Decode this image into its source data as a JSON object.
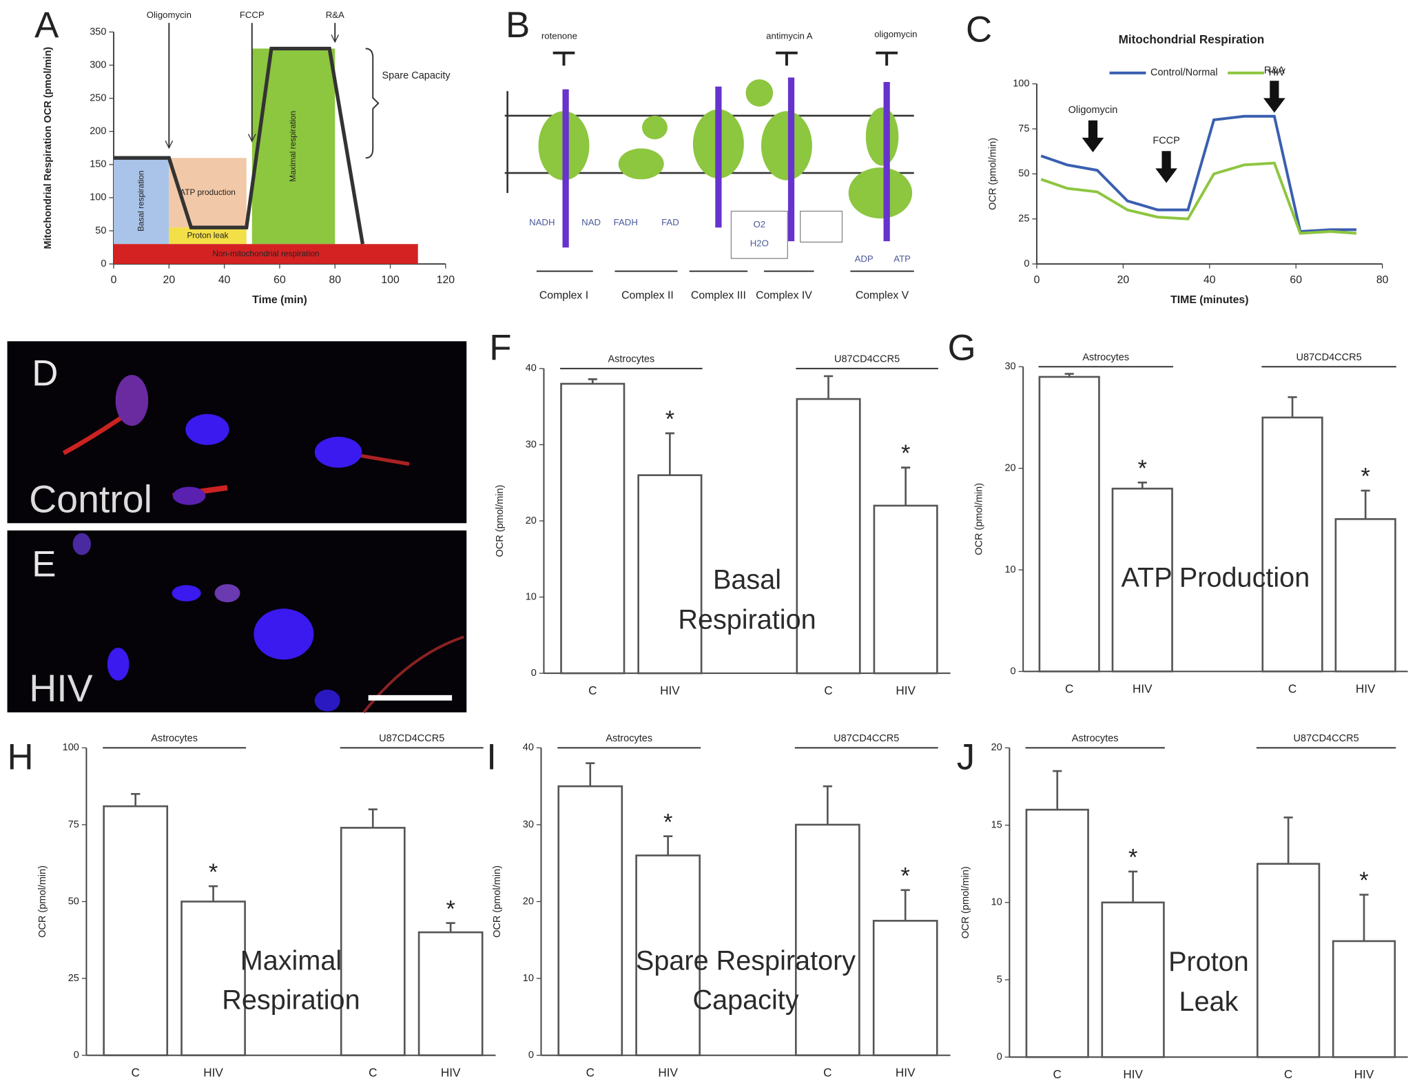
{
  "chart_data": [
    {
      "type": "line",
      "panel": "A",
      "ylabel": "Mitochondrial Respiration OCR (pmol/min)",
      "xlabel": "Time (min)",
      "x": [
        0,
        20,
        28,
        48,
        57,
        78,
        90
      ],
      "series": [
        {
          "color": "#333333",
          "values": [
            160,
            160,
            55,
            55,
            325,
            325,
            30
          ]
        }
      ],
      "xlim": [
        0,
        120
      ],
      "xticks": [
        0,
        20,
        40,
        60,
        80,
        100,
        120
      ],
      "ylim": [
        0,
        350
      ],
      "yticks": [
        0,
        50,
        100,
        150,
        200,
        250,
        300,
        350
      ],
      "regions": [
        {
          "label": "Basal respiration",
          "color": "#a9c4e8",
          "x": [
            0,
            20
          ],
          "y": [
            30,
            160
          ]
        },
        {
          "label": "ATP production",
          "color": "#f2c9a8",
          "x": [
            20,
            48
          ],
          "y": [
            55,
            160
          ]
        },
        {
          "label": "Proton leak",
          "color": "#f3df48",
          "x": [
            20,
            48
          ],
          "y": [
            30,
            55
          ]
        },
        {
          "label": "Maximal respiration",
          "color": "#8dc63f",
          "x": [
            50,
            80
          ],
          "y": [
            30,
            325
          ]
        },
        {
          "label": "Non-mitochondrial respiration",
          "color": "#d42222",
          "x": [
            0,
            110
          ],
          "y": [
            0,
            30
          ]
        }
      ],
      "annotations": [
        {
          "text": "Oligomycin",
          "x": 20,
          "y": 175
        },
        {
          "text": "FCCP",
          "x": 50,
          "y": 185
        },
        {
          "text": "R&A",
          "x": 80,
          "y": 335
        }
      ],
      "bracket": {
        "text": "Spare Capacity",
        "y": [
          160,
          325
        ]
      }
    },
    {
      "type": "line",
      "panel": "C",
      "title": "Mitochondrial Respiration",
      "ylabel": "OCR (pmol/min)",
      "xlabel": "TIME (minutes)",
      "x": [
        1,
        7,
        14,
        21,
        28,
        35,
        41,
        48,
        55,
        61,
        68,
        74
      ],
      "series": [
        {
          "name": "Control/Normal",
          "color": "#3a5fb0",
          "values": [
            60,
            55,
            52,
            35,
            30,
            30,
            80,
            82,
            82,
            18,
            19,
            19
          ]
        },
        {
          "name": "HIV",
          "color": "#8dc63f",
          "values": [
            47,
            42,
            40,
            30,
            26,
            25,
            50,
            55,
            56,
            17,
            18,
            17
          ]
        }
      ],
      "xlim": [
        0,
        80
      ],
      "xticks": [
        0,
        20,
        40,
        60,
        80
      ],
      "ylim": [
        0,
        100
      ],
      "yticks": [
        0,
        25,
        50,
        75,
        100
      ],
      "annotations": [
        {
          "text": "Oligomycin",
          "x": 13,
          "y": 62
        },
        {
          "text": "FCCP",
          "x": 30,
          "y": 45
        },
        {
          "text": "R&A",
          "x": 55,
          "y": 84
        }
      ]
    },
    {
      "type": "bar",
      "panel": "F",
      "title": "Basal Respiration",
      "ylabel": "OCR (pmol/min)",
      "categories": [
        "C",
        "HIV",
        "C",
        "HIV"
      ],
      "groups": [
        "Astrocytes",
        "U87CD4CCR5"
      ],
      "values": [
        38,
        26,
        36,
        22
      ],
      "errors": [
        0.6,
        5.5,
        3,
        5
      ],
      "markers": [
        null,
        "*",
        null,
        "*"
      ],
      "ylim": [
        0,
        40
      ],
      "yticks": [
        0,
        10,
        20,
        30,
        40
      ]
    },
    {
      "type": "bar",
      "panel": "G",
      "title": "ATP Production",
      "ylabel": "OCR (pmol/min)",
      "categories": [
        "C",
        "HIV",
        "C",
        "HIV"
      ],
      "groups": [
        "Astrocytes",
        "U87CD4CCR5"
      ],
      "values": [
        29,
        18,
        25,
        15
      ],
      "errors": [
        0.3,
        0.6,
        2,
        2.8
      ],
      "markers": [
        null,
        "*",
        null,
        "*"
      ],
      "ylim": [
        0,
        30
      ],
      "yticks": [
        0,
        10,
        20,
        30
      ]
    },
    {
      "type": "bar",
      "panel": "H",
      "title": "Maximal Respiration",
      "ylabel": "OCR (pmol/min)",
      "categories": [
        "C",
        "HIV",
        "C",
        "HIV"
      ],
      "groups": [
        "Astrocytes",
        "U87CD4CCR5"
      ],
      "values": [
        81,
        50,
        74,
        40
      ],
      "errors": [
        4,
        5,
        6,
        3
      ],
      "markers": [
        null,
        "*",
        null,
        "*"
      ],
      "ylim": [
        0,
        100
      ],
      "yticks": [
        0,
        25,
        50,
        75,
        100
      ]
    },
    {
      "type": "bar",
      "panel": "I",
      "title": "Spare Respiratory Capacity",
      "ylabel": "OCR (pmol/min)",
      "categories": [
        "C",
        "HIV",
        "C",
        "HIV"
      ],
      "groups": [
        "Astrocytes",
        "U87CD4CCR5"
      ],
      "values": [
        35,
        26,
        30,
        17.5
      ],
      "errors": [
        3,
        2.5,
        5,
        4
      ],
      "markers": [
        null,
        "*",
        null,
        "*"
      ],
      "ylim": [
        0,
        40
      ],
      "yticks": [
        0,
        10,
        20,
        30,
        40
      ]
    },
    {
      "type": "bar",
      "panel": "J",
      "title": "Proton Leak",
      "ylabel": "OCR (pmol/min)",
      "categories": [
        "C",
        "HIV",
        "C",
        "HIV"
      ],
      "groups": [
        "Astrocytes",
        "U87CD4CCR5"
      ],
      "values": [
        16,
        10,
        12.5,
        7.5
      ],
      "errors": [
        2.5,
        2,
        3,
        3
      ],
      "markers": [
        null,
        "*",
        null,
        "*"
      ],
      "ylim": [
        0,
        20
      ],
      "yticks": [
        0,
        5,
        10,
        15,
        20
      ]
    }
  ],
  "diagram": {
    "panel": "B",
    "inhibitors": [
      "rotenone",
      "antimycin A",
      "oligomycin"
    ],
    "complexes": [
      "Complex I",
      "Complex II",
      "Complex III",
      "Complex IV",
      "Complex V"
    ],
    "labels": [
      "NADH",
      "NAD",
      "FADH",
      "FAD",
      "O2",
      "H2O",
      "ADP",
      "ATP"
    ]
  },
  "images": [
    {
      "panel": "D",
      "label": "Control"
    },
    {
      "panel": "E",
      "label": "HIV"
    }
  ]
}
